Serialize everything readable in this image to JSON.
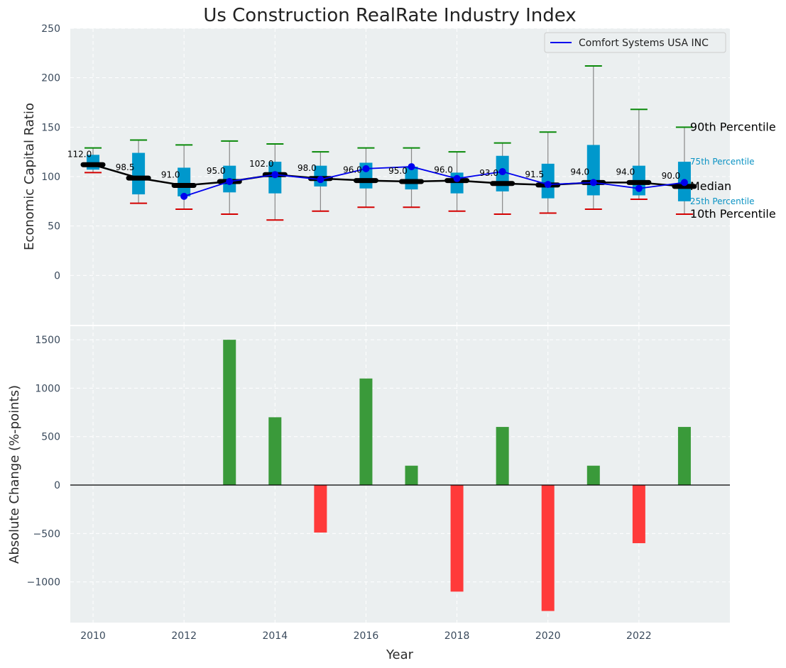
{
  "colors": {
    "plot_bg": "#ebeff0",
    "grid": "#ffffff",
    "box": "#0098cc",
    "whisker": "#888888",
    "cap_top": "#0a8a0a",
    "cap_bottom": "#d40000",
    "median": "#000000",
    "company": "#0000ee",
    "bar_pos": "#3a9a3a",
    "bar_neg": "#ff3a3a",
    "pct_small": "#0b93c4"
  },
  "chart_data": [
    {
      "type": "box_line",
      "title": "Us Construction RealRate Industry Index",
      "ylabel": "Economic Capital Ratio",
      "ylim": [
        -50,
        250
      ],
      "yticks": [
        0,
        50,
        100,
        150,
        200,
        250
      ],
      "xlim": [
        2009.5,
        2024.0
      ],
      "xticks": [
        2010,
        2012,
        2014,
        2016,
        2018,
        2020,
        2022
      ],
      "years": [
        2010,
        2011,
        2012,
        2013,
        2014,
        2015,
        2016,
        2017,
        2018,
        2019,
        2020,
        2021,
        2022,
        2023
      ],
      "p10": [
        104,
        73,
        67,
        62,
        56,
        65,
        69,
        69,
        65,
        62,
        63,
        67,
        77,
        62
      ],
      "q1": [
        107,
        82,
        80,
        84,
        83,
        90,
        88,
        87,
        83,
        85,
        78,
        81,
        81,
        75
      ],
      "median": [
        112.0,
        98.5,
        91.0,
        95.0,
        102.0,
        98.0,
        96.0,
        95.0,
        96.0,
        93.0,
        91.5,
        94.0,
        94.0,
        90.0
      ],
      "median_labels": [
        "112.0",
        "98.5",
        "91.0",
        "95.0",
        "102.0",
        "98.0",
        "96.0",
        "95.0",
        "96.0",
        "93.0",
        "91.5",
        "94.0",
        "94.0",
        "90.0"
      ],
      "q3": [
        122,
        124,
        109,
        111,
        115,
        111,
        114,
        110,
        104,
        121,
        113,
        132,
        111,
        115
      ],
      "p90": [
        129,
        137,
        132,
        136,
        133,
        125,
        129,
        129,
        125,
        134,
        145,
        212,
        168,
        150
      ],
      "company_series": {
        "name": "Comfort Systems USA INC",
        "x": [
          2012,
          2013,
          2014,
          2015,
          2016,
          2017,
          2018,
          2019,
          2020,
          2021,
          2022,
          2023
        ],
        "values": [
          80,
          95,
          102,
          97,
          108,
          110,
          98,
          105,
          92,
          94,
          88,
          94
        ]
      },
      "legend": {
        "position": "top-right",
        "label": "Comfort Systems USA INC"
      },
      "annotations": {
        "p90": "90th Percentile",
        "p75": "75th Percentile",
        "median": "Median",
        "p25": "25th Percentile",
        "p10": "10th Percentile"
      },
      "grid": true
    },
    {
      "type": "bar",
      "ylabel": "Absolute Change (%-points)",
      "xlabel": "Year",
      "ylim": [
        -1420,
        1640
      ],
      "yticks": [
        -1000,
        -500,
        0,
        500,
        1000,
        1500
      ],
      "ytick_labels": [
        "−1000",
        "−500",
        "0",
        "500",
        "1000",
        "1500"
      ],
      "xlim": [
        2009.5,
        2024.0
      ],
      "xticks": [
        2010,
        2012,
        2014,
        2016,
        2018,
        2020,
        2022
      ],
      "x": [
        2013,
        2014,
        2015,
        2016,
        2017,
        2018,
        2019,
        2020,
        2021,
        2022,
        2023
      ],
      "values": [
        1500,
        700,
        -490,
        1100,
        200,
        -1100,
        600,
        -1300,
        200,
        -600,
        600
      ],
      "grid": true
    }
  ]
}
